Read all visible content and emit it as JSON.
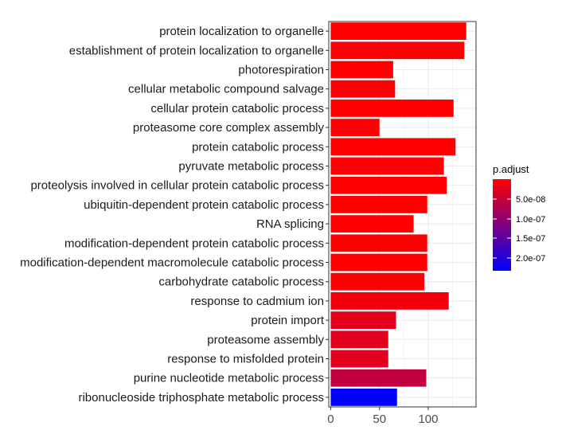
{
  "chart_data": {
    "type": "bar",
    "orientation": "horizontal",
    "categories": [
      "protein localization to organelle",
      "establishment of protein localization to organelle",
      "photorespiration",
      "cellular metabolic compound salvage",
      "cellular protein catabolic process",
      "proteasome core complex assembly",
      "protein catabolic process",
      "pyruvate metabolic process",
      "proteolysis involved in cellular protein catabolic process",
      "ubiquitin-dependent protein catabolic process",
      "RNA splicing",
      "modification-dependent protein catabolic process",
      "modification-dependent macromolecule catabolic process",
      "carbohydrate catabolic process",
      "response to cadmium ion",
      "protein import",
      "proteasome assembly",
      "response to misfolded protein",
      "purine nucleotide metabolic process",
      "ribonucleoside triphosphate metabolic process"
    ],
    "values": [
      139,
      137,
      64,
      66,
      126,
      50,
      128,
      116,
      119,
      99,
      85,
      99,
      99,
      96,
      121,
      67,
      59,
      59,
      98,
      68
    ],
    "colors": [
      "#ff0000",
      "#ff0000",
      "#ff0000",
      "#ff0000",
      "#ff0000",
      "#ff0000",
      "#ff0000",
      "#ff0000",
      "#ff0000",
      "#ff0000",
      "#ff0000",
      "#ff0000",
      "#ff0000",
      "#ff0000",
      "#f2000e",
      "#e4001c",
      "#e2001e",
      "#e2001e",
      "#c20040",
      "#0000ff"
    ],
    "xlim": [
      -2,
      149
    ],
    "xticks": [
      0,
      50,
      100
    ],
    "xtick_labels": [
      "0",
      "50",
      "100"
    ],
    "grid": true,
    "legend": {
      "title": "p.adjust",
      "placement": "right",
      "gradient_top_color": "#ff0000",
      "gradient_bottom_color": "#0000ff",
      "ticks": [
        "5.0e-08",
        "1.0e-07",
        "1.5e-07",
        "2.0e-07"
      ]
    }
  }
}
